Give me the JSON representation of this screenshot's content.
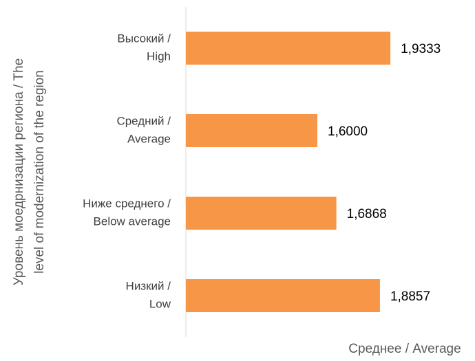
{
  "chart_data": {
    "type": "hbar",
    "categories": [
      [
        "Высокий /",
        "High"
      ],
      [
        "Средний /",
        "Average"
      ],
      [
        "Ниже среднего /",
        "Below average"
      ],
      [
        "Низкий /",
        "Low"
      ]
    ],
    "values": [
      1.9333,
      1.6,
      1.6868,
      1.8857
    ],
    "value_labels": [
      "1,9333",
      "1,6000",
      "1,6868",
      "1,8857"
    ],
    "color": "#f79646",
    "xlim": [
      1,
      2.2
    ],
    "x_label": "Среднее / Average",
    "y_label": [
      "Уровень моедрнизации региона / The",
      "level of modernization of the region"
    ]
  }
}
